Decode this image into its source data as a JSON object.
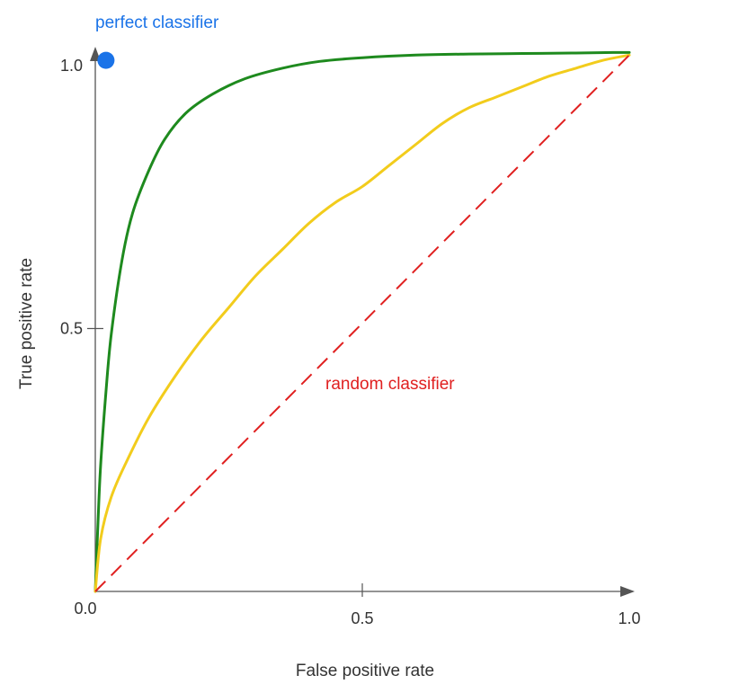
{
  "chart_data": {
    "type": "line",
    "xlabel": "False positive rate",
    "ylabel": "True positive rate",
    "xlim": [
      0,
      1.0
    ],
    "ylim": [
      0,
      1.0
    ],
    "x_ticks": [
      {
        "value": 0.5,
        "label": "0.5"
      },
      {
        "value": 1.0,
        "label": "1.0"
      }
    ],
    "y_ticks": [
      {
        "value": 0.5,
        "label": "0.5"
      },
      {
        "value": 1.0,
        "label": "1.0"
      }
    ],
    "origin_label": "0.0",
    "grid": false,
    "series": [
      {
        "color": "#1e8a1e",
        "style": "solid",
        "x": [
          0,
          0.005,
          0.01,
          0.02,
          0.03,
          0.05,
          0.07,
          0.1,
          0.13,
          0.17,
          0.22,
          0.28,
          0.35,
          0.42,
          0.5,
          0.6,
          0.7,
          0.8,
          0.9,
          0.97,
          1.0
        ],
        "y": [
          0,
          0.13,
          0.24,
          0.38,
          0.49,
          0.63,
          0.72,
          0.8,
          0.86,
          0.91,
          0.946,
          0.975,
          0.995,
          1.008,
          1.015,
          1.02,
          1.022,
          1.023,
          1.024,
          1.025,
          1.025
        ]
      },
      {
        "color": "#f2cc1c",
        "style": "solid",
        "x": [
          0,
          0.01,
          0.03,
          0.06,
          0.1,
          0.15,
          0.2,
          0.25,
          0.3,
          0.35,
          0.4,
          0.45,
          0.5,
          0.55,
          0.6,
          0.65,
          0.7,
          0.75,
          0.8,
          0.85,
          0.9,
          0.95,
          1.0
        ],
        "y": [
          0,
          0.1,
          0.18,
          0.25,
          0.33,
          0.41,
          0.48,
          0.54,
          0.6,
          0.65,
          0.7,
          0.74,
          0.77,
          0.81,
          0.85,
          0.89,
          0.92,
          0.94,
          0.96,
          0.98,
          0.995,
          1.01,
          1.02
        ]
      },
      {
        "color": "#e02020",
        "style": "dashed",
        "x": [
          0,
          1.0
        ],
        "y": [
          0,
          1.02
        ]
      }
    ],
    "points": [
      {
        "x": 0.02,
        "y": 1.01,
        "color": "#1a73e8"
      }
    ],
    "annotations": [
      {
        "text": "perfect classifier",
        "color": "#1a73e8"
      },
      {
        "text": "random classifier",
        "color": "#e02020"
      }
    ],
    "axis_color": "#555555",
    "text_color": "#333333"
  }
}
